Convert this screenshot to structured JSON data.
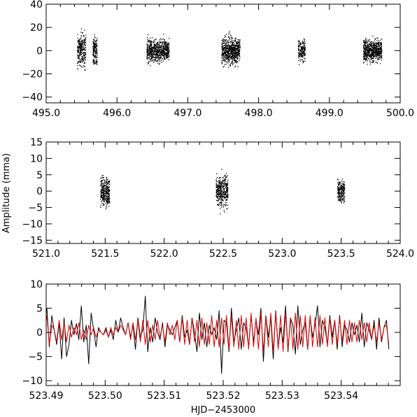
{
  "figure": {
    "ylabel": "Amplitude (mma)",
    "xlabel": "HJD−2453000"
  },
  "chart_data": [
    {
      "type": "scatter",
      "panel": "top",
      "xlim": [
        495.0,
        500.0
      ],
      "ylim": [
        -45,
        40
      ],
      "xticks": [
        495.0,
        496.0,
        497.0,
        498.0,
        499.0,
        500.0
      ],
      "xtick_labels": [
        "495.0",
        "496.0",
        "497.0",
        "498.0",
        "499.0",
        "500.0"
      ],
      "yticks": [
        -40,
        -20,
        0,
        20,
        40
      ],
      "ytick_labels": [
        "−40",
        "−20",
        "0",
        "20",
        "40"
      ],
      "marker_color": "#000000",
      "clusters": [
        {
          "x_start": 495.44,
          "x_end": 495.56,
          "y_sd": 12,
          "y_max": 30,
          "count": 260
        },
        {
          "x_start": 495.66,
          "x_end": 495.72,
          "y_sd": 11,
          "y_max": 30,
          "count": 150
        },
        {
          "x_start": 496.42,
          "x_end": 496.74,
          "y_sd": 8,
          "y_max": 25,
          "count": 650
        },
        {
          "x_start": 497.48,
          "x_end": 497.74,
          "y_sd": 10,
          "y_max": 35,
          "count": 650
        },
        {
          "x_start": 498.56,
          "x_end": 498.66,
          "y_sd": 8,
          "y_max": 24,
          "count": 170
        },
        {
          "x_start": 499.48,
          "x_end": 499.74,
          "y_sd": 8,
          "y_max": 28,
          "count": 620
        }
      ]
    },
    {
      "type": "scatter",
      "panel": "middle",
      "xlim": [
        521.0,
        524.0
      ],
      "ylim": [
        -16,
        15
      ],
      "xticks": [
        521.0,
        521.5,
        522.0,
        522.5,
        523.0,
        523.5,
        524.0
      ],
      "xtick_labels": [
        "521.0",
        "521.5",
        "522.0",
        "522.5",
        "523.0",
        "523.5",
        "524.0"
      ],
      "yticks": [
        -15,
        -10,
        -5,
        0,
        5,
        10,
        15
      ],
      "ytick_labels": [
        "−15",
        "−10",
        "−5",
        "0",
        "5",
        "10",
        "15"
      ],
      "marker_color": "#000000",
      "clusters": [
        {
          "x_start": 521.46,
          "x_end": 521.54,
          "y_sd": 3.6,
          "y_max": 9,
          "count": 300
        },
        {
          "x_start": 522.44,
          "x_end": 522.54,
          "y_sd": 4.2,
          "y_max": 11,
          "count": 380
        },
        {
          "x_start": 523.47,
          "x_end": 523.53,
          "y_sd": 3.0,
          "y_max": 8,
          "count": 200
        }
      ]
    },
    {
      "type": "line",
      "panel": "bottom",
      "xlim": [
        523.49,
        523.55
      ],
      "ylim": [
        -11,
        10
      ],
      "xticks": [
        523.49,
        523.5,
        523.51,
        523.52,
        523.53,
        523.54
      ],
      "xtick_labels": [
        "523.49",
        "523.50",
        "523.51",
        "523.52",
        "523.53",
        "523.54"
      ],
      "yticks": [
        -10,
        -5,
        0,
        5,
        10
      ],
      "ytick_labels": [
        "−10",
        "−5",
        "0",
        "5",
        "10"
      ],
      "x_start": 523.4897,
      "x_step": 0.000417,
      "series": [
        {
          "color": "#000000",
          "values": [
            0.5,
            5.0,
            -3.0,
            3.5,
            0.3,
            -2.5,
            2.0,
            -5.5,
            3.0,
            -5.0,
            -2.5,
            2.5,
            -0.5,
            1.8,
            -1.5,
            5.5,
            -2.0,
            1.5,
            -6.5,
            4.0,
            0.5,
            -3.0,
            1.0,
            0.0,
            -0.5,
            1.0,
            -1.0,
            0.5,
            -1.5,
            2.5,
            0.0,
            3.0,
            1.0,
            -0.5,
            2.0,
            -1.0,
            1.5,
            -3.5,
            3.0,
            -1.0,
            0.5,
            7.5,
            -4.0,
            1.0,
            -2.0,
            3.0,
            0.0,
            -1.5,
            2.0,
            -3.0,
            1.5,
            0.5,
            -0.5,
            1.0,
            2.5,
            -2.0,
            3.5,
            -1.0,
            0.5,
            -2.5,
            3.0,
            0.0,
            -4.0,
            4.0,
            -1.5,
            2.0,
            -3.0,
            1.5,
            -0.5,
            1.0,
            -1.5,
            4.5,
            -8.5,
            2.5,
            2.0,
            -4.0,
            5.0,
            -2.0,
            0.5,
            3.0,
            -3.5,
            2.0,
            1.0,
            -3.0,
            3.5,
            -2.0,
            2.5,
            -0.5,
            5.0,
            -6.0,
            3.5,
            -1.0,
            3.0,
            -5.5,
            4.5,
            -3.0,
            1.0,
            -2.0,
            5.5,
            -4.0,
            3.0,
            1.5,
            -4.5,
            5.5,
            -2.5,
            0.5,
            2.0,
            -3.5,
            3.0,
            -1.0,
            1.5,
            5.5,
            -3.0,
            2.5,
            1.0,
            -2.5,
            3.5,
            -1.0,
            2.5,
            -3.5,
            3.5,
            -3.0,
            1.5,
            0.5,
            -2.0,
            2.0,
            -0.5,
            1.5,
            -2.0,
            4.0,
            -3.0,
            2.0,
            0.5,
            -1.5,
            2.5,
            -3.5,
            3.0,
            -2.0,
            1.0,
            2.5,
            -3.5
          ]
        },
        {
          "color": "#dd0000",
          "values": [
            -0.5,
            3.5,
            -2.5,
            1.5,
            0.5,
            -2.0,
            2.5,
            -1.5,
            2.0,
            -2.0,
            1.5,
            -1.0,
            1.0,
            -0.5,
            2.0,
            -1.5,
            0.5,
            -1.5,
            1.5,
            -0.5,
            1.0,
            -1.0,
            0.5,
            0.0,
            -0.5,
            0.5,
            -1.0,
            1.0,
            -0.5,
            1.0,
            0.0,
            1.5,
            0.5,
            -0.5,
            2.0,
            -1.5,
            2.0,
            -1.5,
            2.5,
            -2.0,
            2.5,
            -2.5,
            2.5,
            -2.0,
            1.5,
            -1.5,
            2.5,
            -1.0,
            1.5,
            -2.0,
            2.0,
            -0.5,
            1.5,
            -1.5,
            2.5,
            -2.0,
            3.0,
            -2.5,
            2.5,
            -2.5,
            3.0,
            -2.0,
            2.5,
            -3.0,
            3.0,
            -2.5,
            2.0,
            -2.5,
            3.5,
            -3.0,
            2.5,
            -3.0,
            3.0,
            -2.5,
            3.5,
            -3.5,
            3.5,
            -3.0,
            2.5,
            -3.5,
            3.5,
            -3.0,
            3.0,
            -3.5,
            4.0,
            -3.0,
            3.0,
            -3.5,
            4.0,
            -4.0,
            3.5,
            -3.0,
            4.0,
            -4.0,
            4.0,
            -3.5,
            3.5,
            -4.0,
            4.0,
            -3.5,
            3.0,
            -3.5,
            4.0,
            -3.5,
            3.5,
            -3.0,
            3.5,
            -3.5,
            3.5,
            -3.0,
            3.0,
            -3.0,
            3.5,
            -2.5,
            3.0,
            -3.0,
            3.0,
            -2.5,
            2.5,
            -2.5,
            3.0,
            -2.0,
            2.5,
            -2.5,
            2.5,
            -2.0,
            2.0,
            -2.0,
            2.5,
            -1.5,
            2.0,
            -2.0,
            2.0,
            -1.5,
            1.5,
            -2.0,
            2.0,
            -1.5,
            1.0,
            1.5,
            -2.5
          ]
        }
      ]
    }
  ]
}
